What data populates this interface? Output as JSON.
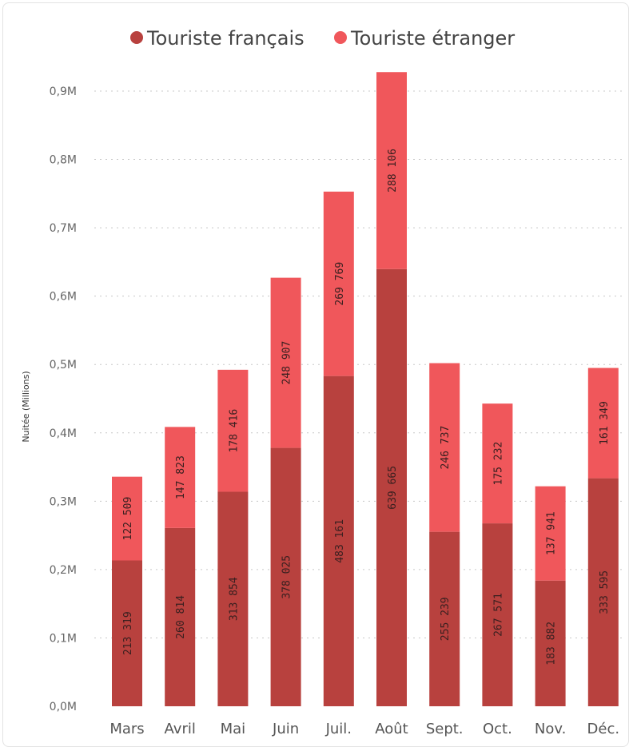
{
  "chart_data": {
    "type": "bar",
    "stacked": true,
    "categories": [
      "Mars",
      "Avril",
      "Mai",
      "Juin",
      "Juil.",
      "Août",
      "Sept.",
      "Oct.",
      "Nov.",
      "Déc."
    ],
    "series": [
      {
        "name": "Touriste français",
        "color": "#b8413e",
        "values": [
          213319,
          260814,
          313854,
          378025,
          483161,
          639665,
          255239,
          267571,
          183882,
          333595
        ],
        "labels": [
          "213 319",
          "260 814",
          "313 854",
          "378 025",
          "483 161",
          "639 665",
          "255 239",
          "267 571",
          "183 882",
          "333 595"
        ]
      },
      {
        "name": "Touriste étranger",
        "color": "#f0575b",
        "values": [
          122509,
          147823,
          178416,
          248907,
          269769,
          288106,
          246737,
          175232,
          137941,
          161349
        ],
        "labels": [
          "122 509",
          "147 823",
          "178 416",
          "248 907",
          "269 769",
          "288 106",
          "246 737",
          "175 232",
          "137 941",
          "161 349"
        ]
      }
    ],
    "ylabel": "Nuitée (Millions)",
    "ylim": [
      0,
      900000
    ],
    "yticks": [
      0,
      100000,
      200000,
      300000,
      400000,
      500000,
      600000,
      700000,
      800000,
      900000
    ],
    "ytick_labels": [
      "0,0M",
      "0,1M",
      "0,2M",
      "0,3M",
      "0,4M",
      "0,5M",
      "0,6M",
      "0,7M",
      "0,8M",
      "0,9M"
    ],
    "grid": true,
    "legend_position": "top"
  }
}
